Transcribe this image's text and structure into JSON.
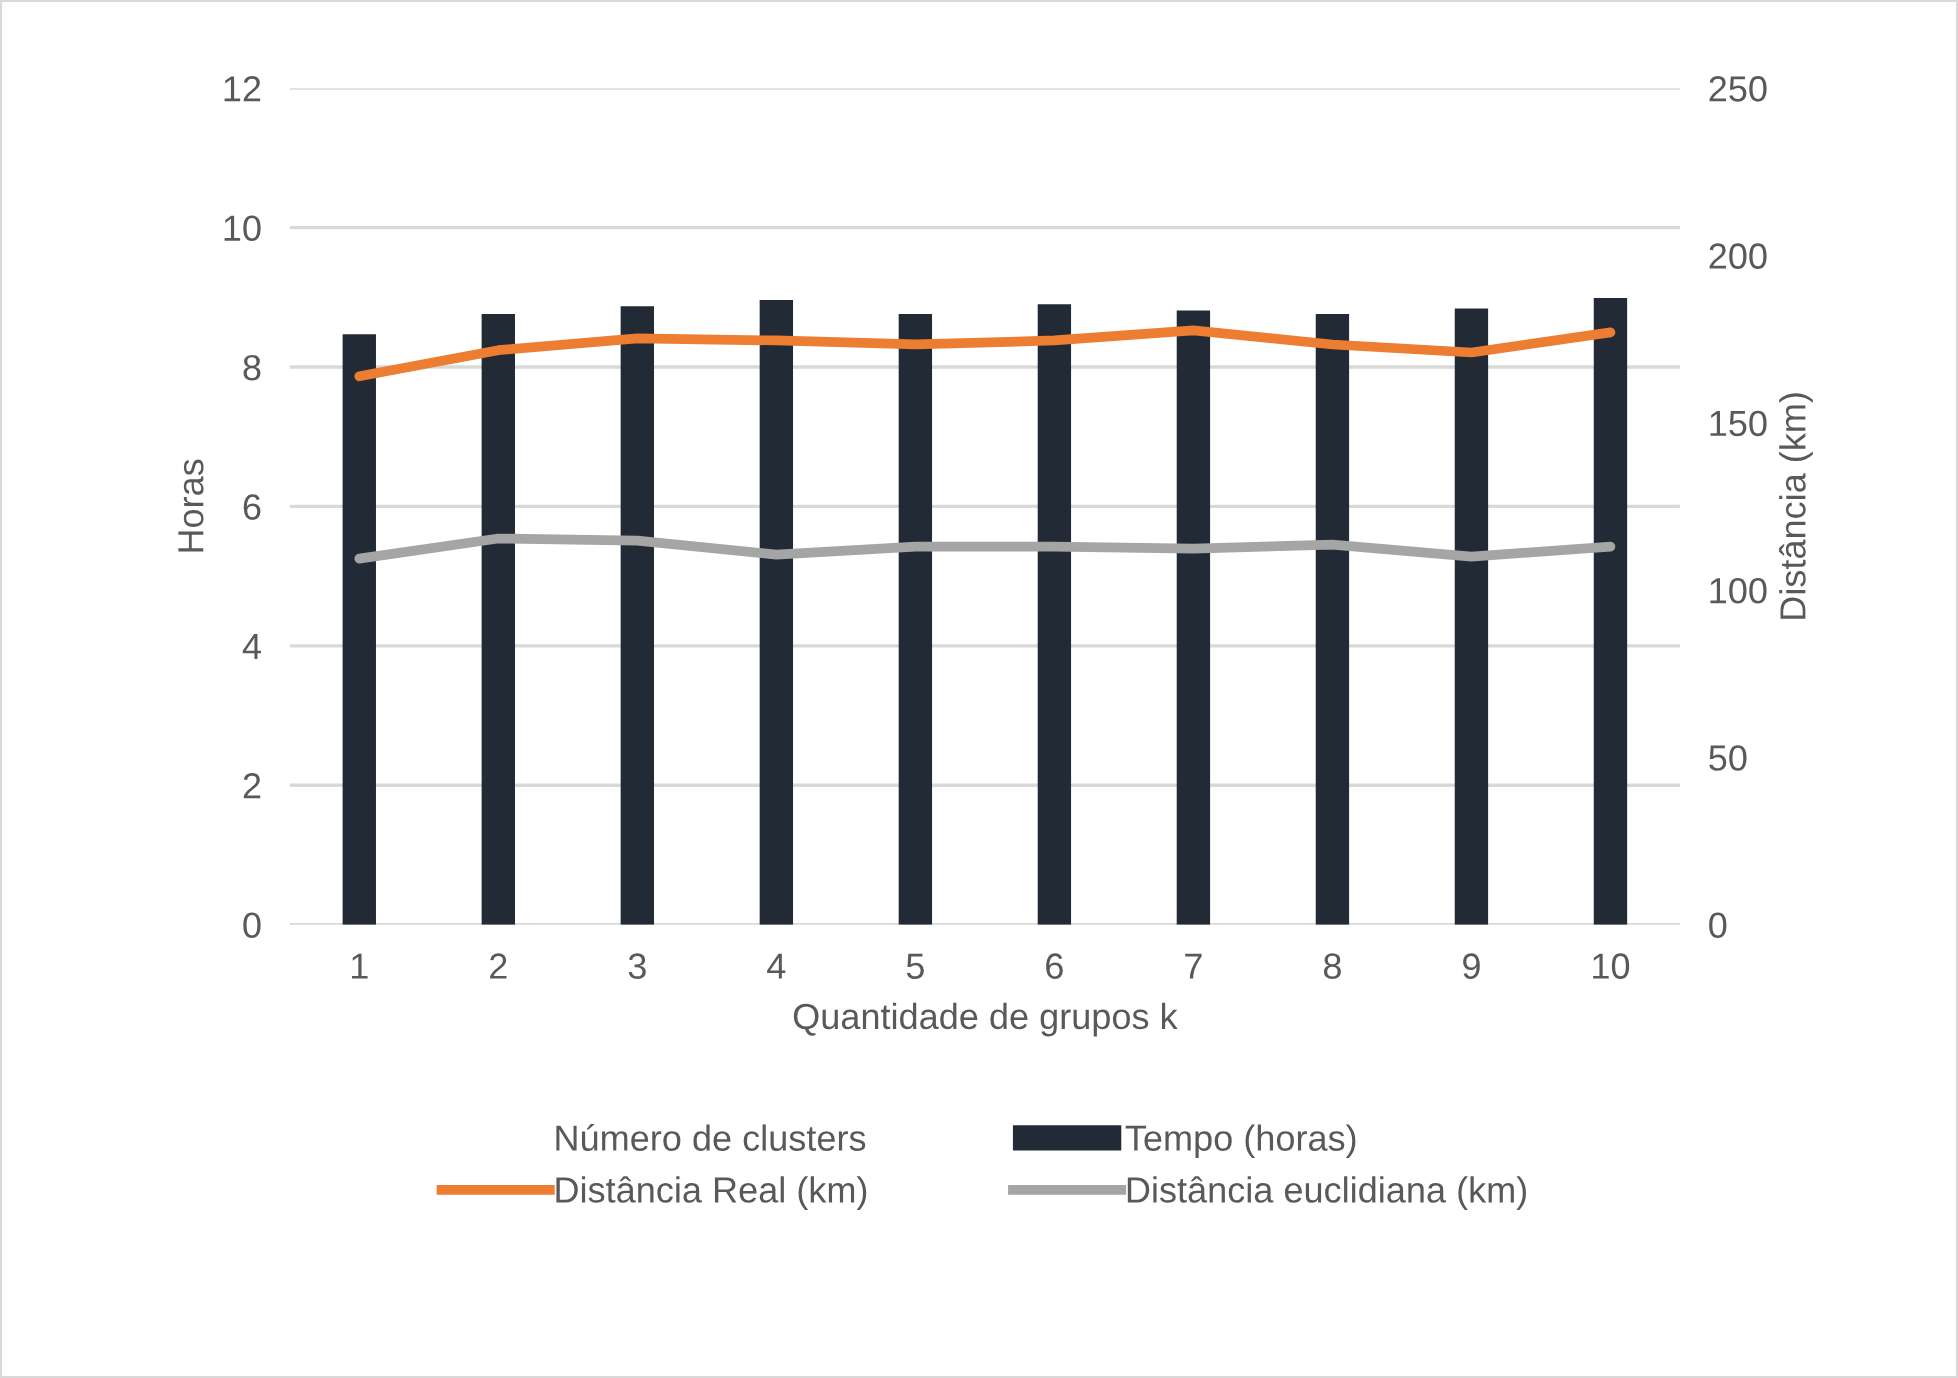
{
  "chart_data": {
    "type": "bar",
    "xlabel": "Quantidade de grupos k",
    "ylabel": "Horas",
    "y2label": "Distância (km)",
    "categories": [
      "1",
      "2",
      "3",
      "4",
      "5",
      "6",
      "7",
      "8",
      "9",
      "10"
    ],
    "series": [
      {
        "name": "Número de clusters",
        "color": null,
        "values": [
          null,
          null,
          null,
          null,
          null,
          null,
          null,
          null,
          null,
          null
        ]
      },
      {
        "name": "Tempo (horas)",
        "color": "#222a35",
        "values": [
          8.47,
          8.76,
          8.87,
          8.96,
          8.76,
          8.9,
          8.81,
          8.76,
          8.84,
          8.99
        ]
      },
      {
        "name": "Distância Real (km)",
        "type": "line",
        "axis": "y2",
        "color": "#ed7d31",
        "values": [
          163.9,
          171.7,
          175.2,
          174.6,
          173.4,
          174.6,
          177.6,
          173.4,
          171,
          177
        ]
      },
      {
        "name": "Distância euclidiana (km)",
        "type": "line",
        "axis": "y2",
        "color": "#a5a5a5",
        "values": [
          109.4,
          115.4,
          114.8,
          110.6,
          113,
          113,
          112.4,
          113.6,
          110,
          113
        ]
      }
    ],
    "ylim": [
      0,
      12
    ],
    "yticks": [
      0,
      2,
      4,
      6,
      8,
      10,
      12
    ],
    "y2lim": [
      0,
      250
    ],
    "y2ticks": [
      0,
      50,
      100,
      150,
      200,
      250
    ],
    "grid": "y",
    "legend": "bottom",
    "marker": "none",
    "line_style": "solid"
  }
}
